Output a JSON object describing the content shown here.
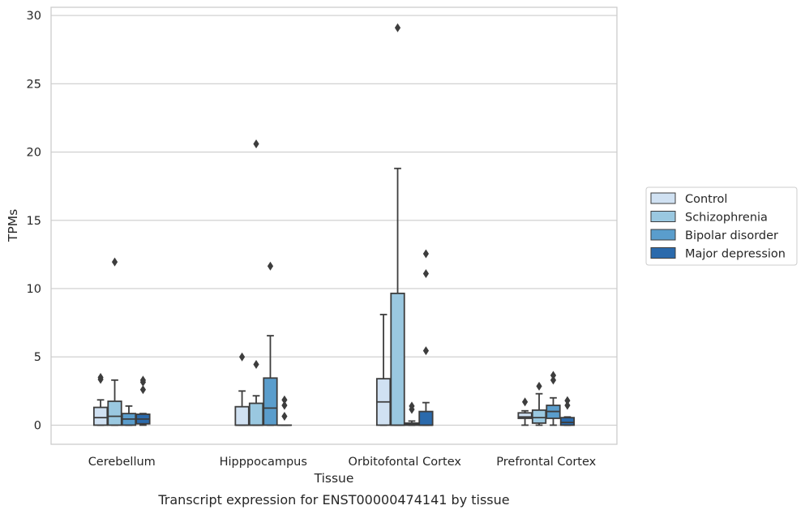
{
  "chart_data": {
    "type": "box",
    "title": "",
    "caption": "Transcript expression for ENST00000474141 by tissue",
    "xlabel": "Tissue",
    "ylabel": "TPMs",
    "ylim": [
      -1.4,
      30.6
    ],
    "yticks": [
      0,
      5,
      10,
      15,
      20,
      25,
      30
    ],
    "grid": "horizontal",
    "legend_position": "right",
    "categories": [
      "Cerebellum",
      "Hipppocampus",
      "Orbitofontal Cortex",
      "Prefrontal Cortex"
    ],
    "series": [
      {
        "name": "Control",
        "color": "#d0e1f2",
        "boxes": [
          {
            "whislo": 0,
            "q1": 0,
            "med": 0.55,
            "q3": 1.3,
            "whishi": 1.85,
            "fliers": [
              3.35,
              3.5
            ]
          },
          {
            "whislo": 0,
            "q1": 0,
            "med": 0,
            "q3": 1.35,
            "whishi": 2.5,
            "fliers": [
              5.0
            ]
          },
          {
            "whislo": 0,
            "q1": 0,
            "med": 1.7,
            "q3": 3.4,
            "whishi": 8.1,
            "fliers": []
          },
          {
            "whislo": 0,
            "q1": 0.5,
            "med": 0.6,
            "q3": 0.9,
            "whishi": 1.05,
            "fliers": [
              1.7
            ]
          }
        ]
      },
      {
        "name": "Schizophrenia",
        "color": "#9ac8e0",
        "boxes": [
          {
            "whislo": 0,
            "q1": 0,
            "med": 0.65,
            "q3": 1.75,
            "whishi": 3.3,
            "fliers": [
              11.95
            ]
          },
          {
            "whislo": 0,
            "q1": 0,
            "med": 0,
            "q3": 1.6,
            "whishi": 2.15,
            "fliers": [
              4.45,
              20.6
            ]
          },
          {
            "whislo": 0,
            "q1": 0,
            "med": 0,
            "q3": 9.65,
            "whishi": 18.8,
            "fliers": [
              29.1
            ]
          },
          {
            "whislo": 0,
            "q1": 0.15,
            "med": 0.55,
            "q3": 1.1,
            "whishi": 2.3,
            "fliers": [
              2.85
            ]
          }
        ]
      },
      {
        "name": "Bipolar disorder",
        "color": "#5a9dcc",
        "boxes": [
          {
            "whislo": 0,
            "q1": 0,
            "med": 0.45,
            "q3": 0.85,
            "whishi": 1.4,
            "fliers": []
          },
          {
            "whislo": 0,
            "q1": 0,
            "med": 1.25,
            "q3": 3.45,
            "whishi": 6.55,
            "fliers": [
              11.65
            ]
          },
          {
            "whislo": 0,
            "q1": 0,
            "med": 0.05,
            "q3": 0.15,
            "whishi": 0.3,
            "fliers": [
              1.15,
              1.4
            ]
          },
          {
            "whislo": 0,
            "q1": 0.5,
            "med": 1.0,
            "q3": 1.45,
            "whishi": 2.0,
            "fliers": [
              3.3,
              3.65
            ]
          }
        ]
      },
      {
        "name": "Major depression",
        "color": "#2b6aac",
        "boxes": [
          {
            "whislo": 0,
            "q1": 0.1,
            "med": 0.45,
            "q3": 0.8,
            "whishi": 0.85,
            "fliers": [
              2.6,
              3.15,
              3.3
            ]
          },
          {
            "whislo": 0,
            "q1": 0,
            "med": 0,
            "q3": 0,
            "whishi": 0,
            "fliers": [
              0.65,
              1.45,
              1.85
            ]
          },
          {
            "whislo": 0,
            "q1": 0,
            "med": 0,
            "q3": 1.0,
            "whishi": 1.65,
            "fliers": [
              5.45,
              11.1,
              12.55
            ]
          },
          {
            "whislo": 0,
            "q1": 0,
            "med": 0.2,
            "q3": 0.55,
            "whishi": 0.6,
            "fliers": [
              1.45,
              1.8
            ]
          }
        ]
      }
    ]
  }
}
